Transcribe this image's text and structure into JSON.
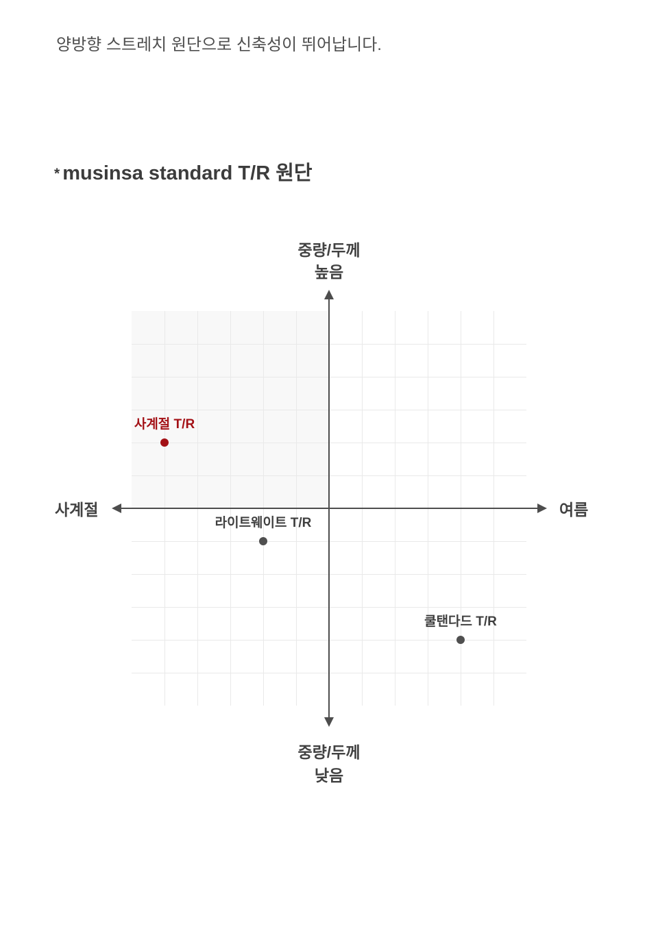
{
  "page": {
    "intro_text": "양방향 스트레치 원단으로 신축성이 뛰어납니다.",
    "title_star": "*",
    "title": "musinsa standard T/R 원단"
  },
  "chart_data": {
    "type": "scatter",
    "subtype": "quadrant-positioning-map",
    "x_axis": {
      "left_label": "사계절",
      "right_label": "여름"
    },
    "y_axis": {
      "top_label_lines": [
        "중량/두께",
        "높음"
      ],
      "bottom_label_lines": [
        "중량/두께",
        "낮음"
      ]
    },
    "grid": {
      "cols": 12,
      "rows": 12,
      "xlim": [
        -6,
        6
      ],
      "ylim": [
        -6,
        6
      ],
      "gridlines": true,
      "shaded_quadrant": "upper-left"
    },
    "points": [
      {
        "label": "사계절 T/R",
        "x": -5,
        "y": 2,
        "dot_color": "#a31116",
        "label_color": "#a31116",
        "emphasis": true
      },
      {
        "label": "라이트웨이트 T/R",
        "x": -2,
        "y": -1,
        "dot_color": "#4f4f4f",
        "label_color": "#3f3f3f",
        "emphasis": false
      },
      {
        "label": "쿨탠다드 T/R",
        "x": 4,
        "y": -4,
        "dot_color": "#4f4f4f",
        "label_color": "#3f3f3f",
        "emphasis": false
      }
    ],
    "colors": {
      "axis": "#4d4d4d",
      "grid_line": "#e9e9e9",
      "quadrant_shade": "#f8f8f8"
    },
    "legend": "none"
  }
}
